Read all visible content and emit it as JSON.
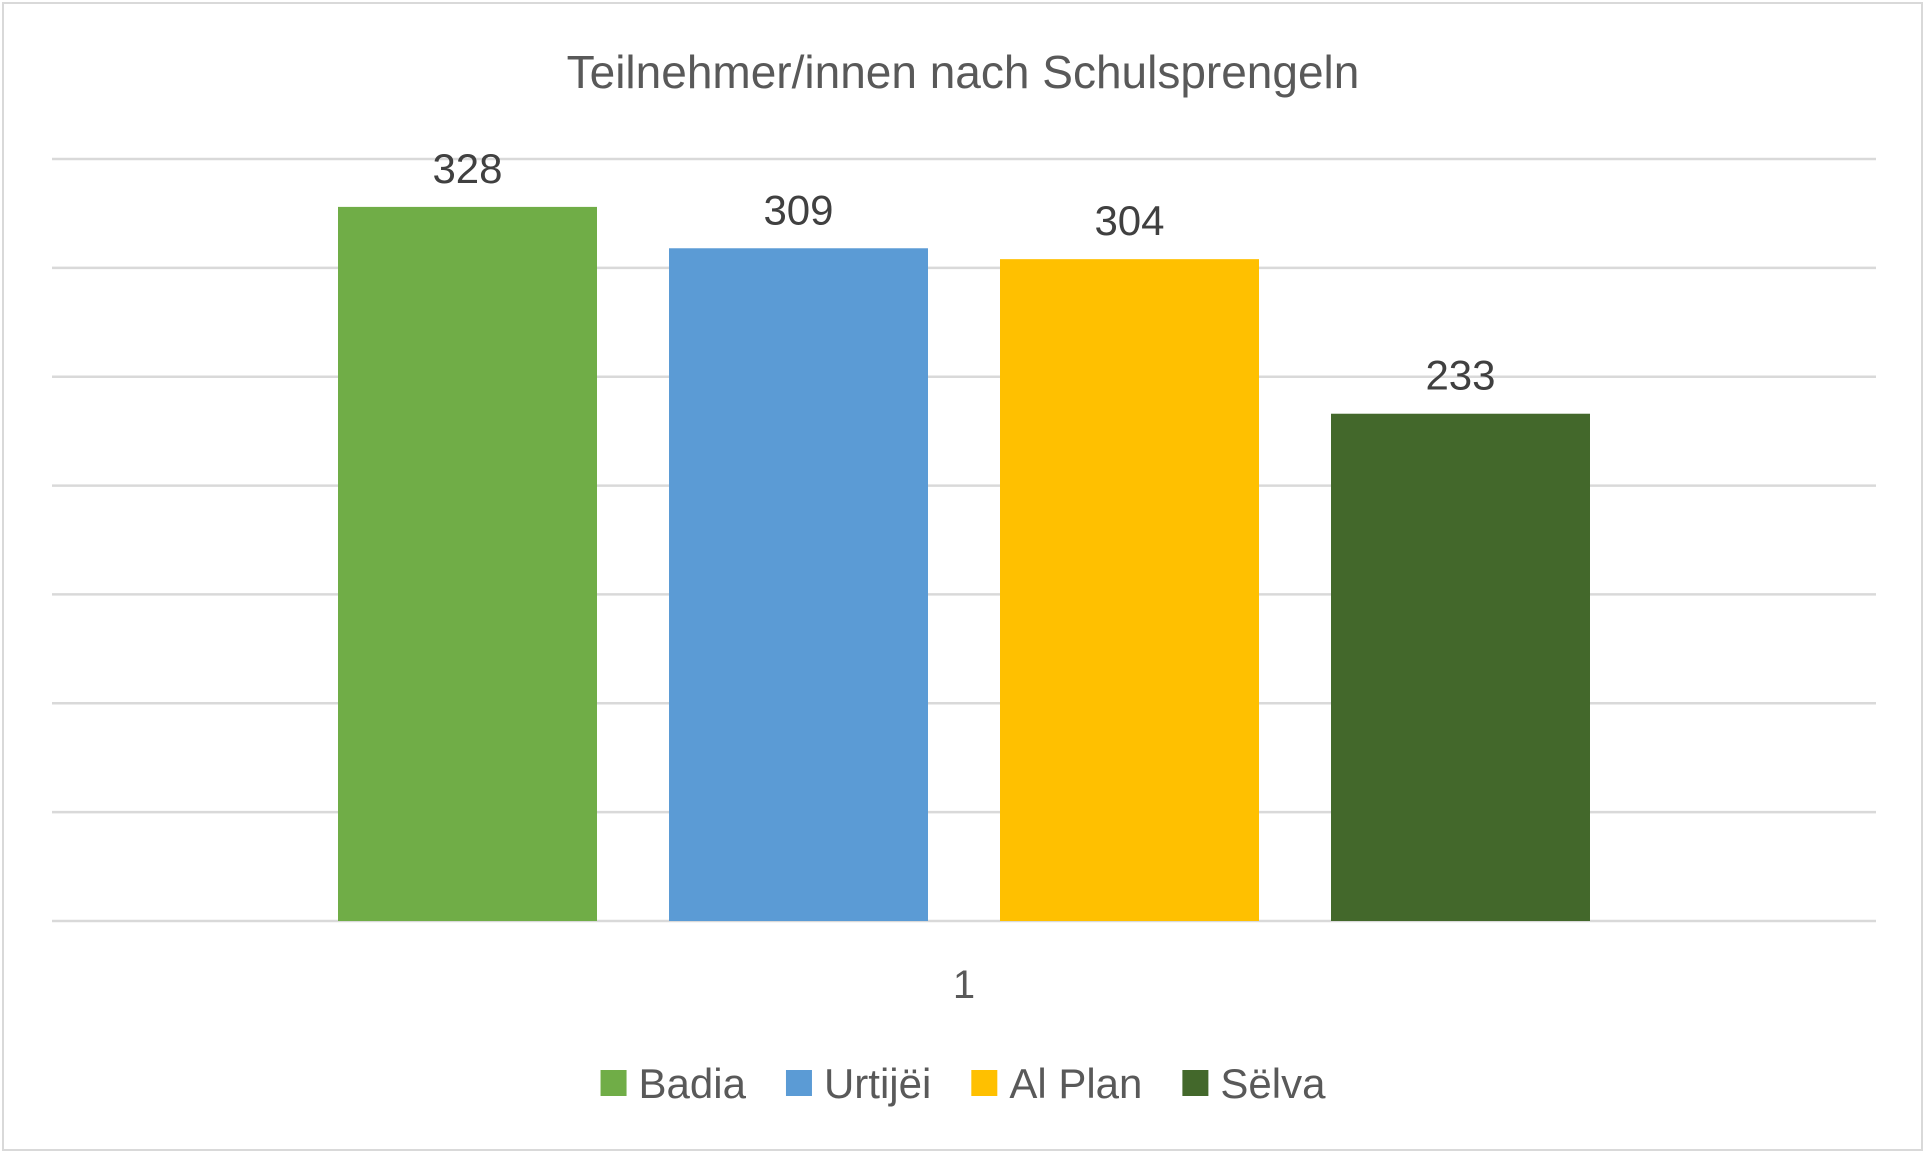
{
  "chart_data": {
    "type": "bar",
    "title": "Teilnehmer/innen nach Schulsprengeln",
    "categories": [
      "1"
    ],
    "series": [
      {
        "name": "Badia",
        "values": [
          328
        ],
        "color": "#70ad47"
      },
      {
        "name": "Urtijëi",
        "values": [
          309
        ],
        "color": "#5b9bd5"
      },
      {
        "name": "Al Plan",
        "values": [
          304
        ],
        "color": "#ffc000"
      },
      {
        "name": "Sëlva",
        "values": [
          233
        ],
        "color": "#43682b"
      }
    ],
    "ylim": [
      0,
      350
    ],
    "ytick_step": 50,
    "grid": true,
    "legend_position": "bottom",
    "xlabel": "",
    "ylabel": ""
  }
}
